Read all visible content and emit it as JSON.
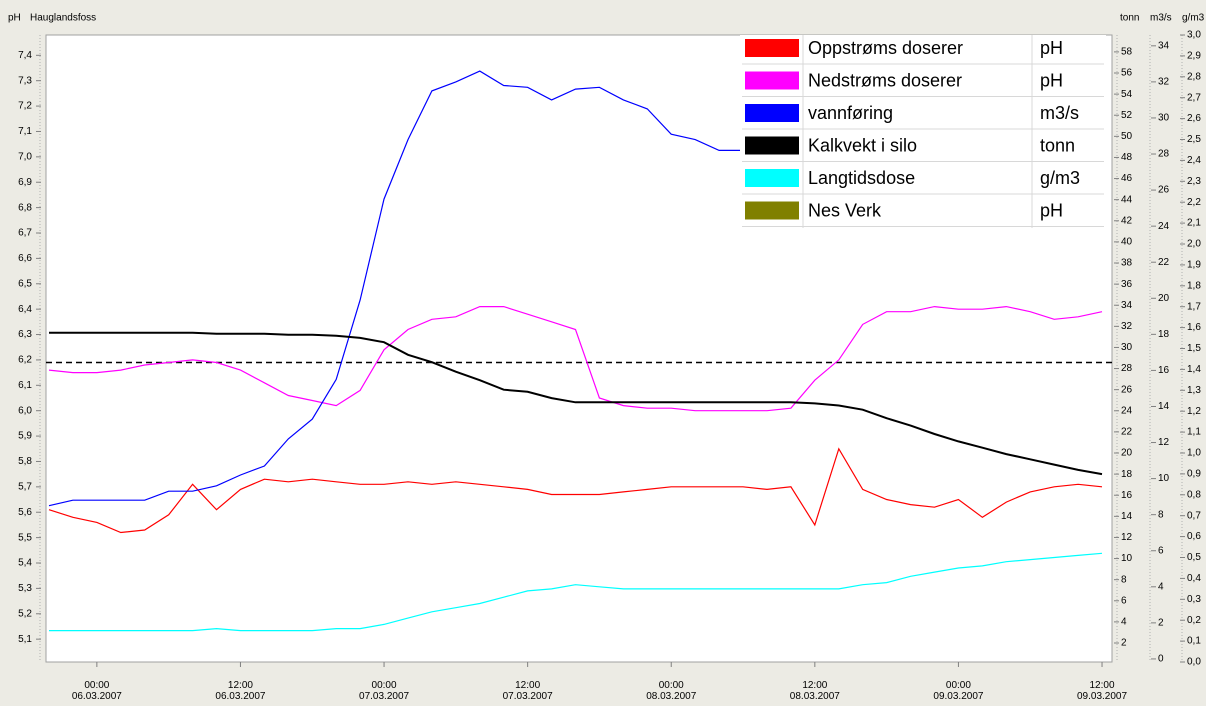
{
  "chart_data": {
    "type": "line",
    "title": "Hauglandsfoss",
    "ylabel": "pH",
    "y2label": "tonn",
    "y3label": "m3/s",
    "y4label": "g/m3",
    "x": [
      "2007-03-05T20:00",
      "2007-03-05T22:00",
      "2007-03-06T00:00",
      "2007-03-06T02:00",
      "2007-03-06T04:00",
      "2007-03-06T06:00",
      "2007-03-06T08:00",
      "2007-03-06T10:00",
      "2007-03-06T12:00",
      "2007-03-06T14:00",
      "2007-03-06T16:00",
      "2007-03-06T18:00",
      "2007-03-06T20:00",
      "2007-03-06T22:00",
      "2007-03-07T00:00",
      "2007-03-07T02:00",
      "2007-03-07T04:00",
      "2007-03-07T06:00",
      "2007-03-07T08:00",
      "2007-03-07T10:00",
      "2007-03-07T12:00",
      "2007-03-07T14:00",
      "2007-03-07T16:00",
      "2007-03-07T18:00",
      "2007-03-07T20:00",
      "2007-03-07T22:00",
      "2007-03-08T00:00",
      "2007-03-08T02:00",
      "2007-03-08T04:00",
      "2007-03-08T06:00",
      "2007-03-08T08:00",
      "2007-03-08T10:00",
      "2007-03-08T12:00",
      "2007-03-08T14:00",
      "2007-03-08T16:00",
      "2007-03-08T18:00",
      "2007-03-08T20:00",
      "2007-03-08T22:00",
      "2007-03-09T00:00",
      "2007-03-09T02:00",
      "2007-03-09T04:00",
      "2007-03-09T06:00",
      "2007-03-09T08:00",
      "2007-03-09T10:00",
      "2007-03-09T12:00"
    ],
    "xlim": [
      "2007-03-05T19:45",
      "2007-03-09T12:50"
    ],
    "xticks": [
      {
        "value": "2007-03-06T00:00",
        "label": "00:00\n06.03.2007"
      },
      {
        "value": "2007-03-06T12:00",
        "label": "12:00\n06.03.2007"
      },
      {
        "value": "2007-03-07T00:00",
        "label": "00:00\n07.03.2007"
      },
      {
        "value": "2007-03-07T12:00",
        "label": "12:00\n07.03.2007"
      },
      {
        "value": "2007-03-08T00:00",
        "label": "00:00\n08.03.2007"
      },
      {
        "value": "2007-03-08T12:00",
        "label": "12:00\n08.03.2007"
      },
      {
        "value": "2007-03-09T00:00",
        "label": "00:00\n09.03.2007"
      },
      {
        "value": "2007-03-09T12:00",
        "label": "12:00\n09.03.2007"
      }
    ],
    "ylim": [
      5.01,
      7.48
    ],
    "yticks": [
      {
        "value": 5.1,
        "label": "5,1"
      },
      {
        "value": 5.2,
        "label": "5,2"
      },
      {
        "value": 5.3,
        "label": "5,3"
      },
      {
        "value": 5.4,
        "label": "5,4"
      },
      {
        "value": 5.5,
        "label": "5,5"
      },
      {
        "value": 5.6,
        "label": "5,6"
      },
      {
        "value": 5.7,
        "label": "5,7"
      },
      {
        "value": 5.8,
        "label": "5,8"
      },
      {
        "value": 5.9,
        "label": "5,9"
      },
      {
        "value": 6.0,
        "label": "6,0"
      },
      {
        "value": 6.1,
        "label": "6,1"
      },
      {
        "value": 6.2,
        "label": "6,2"
      },
      {
        "value": 6.3,
        "label": "6,3"
      },
      {
        "value": 6.4,
        "label": "6,4"
      },
      {
        "value": 6.5,
        "label": "6,5"
      },
      {
        "value": 6.6,
        "label": "6,6"
      },
      {
        "value": 6.7,
        "label": "6,7"
      },
      {
        "value": 6.8,
        "label": "6,8"
      },
      {
        "value": 6.9,
        "label": "6,9"
      },
      {
        "value": 7.0,
        "label": "7,0"
      },
      {
        "value": 7.1,
        "label": "7,1"
      },
      {
        "value": 7.2,
        "label": "7,2"
      },
      {
        "value": 7.3,
        "label": "7,3"
      },
      {
        "value": 7.4,
        "label": "7,4"
      }
    ],
    "y2lim": [
      0.2,
      59.6
    ],
    "y2ticks": [
      2,
      4,
      6,
      8,
      10,
      12,
      14,
      16,
      18,
      20,
      22,
      24,
      26,
      28,
      30,
      32,
      34,
      36,
      38,
      40,
      42,
      44,
      46,
      48,
      50,
      52,
      54,
      56,
      58
    ],
    "y3lim": [
      -0.17,
      34.6
    ],
    "y3ticks": [
      0,
      2,
      4,
      6,
      8,
      10,
      12,
      14,
      16,
      18,
      20,
      22,
      24,
      26,
      28,
      30,
      32,
      34
    ],
    "y4lim": [
      0,
      3
    ],
    "y4ticks": [
      {
        "value": 0,
        "label": "0,0"
      },
      {
        "value": 0.1,
        "label": "0,1"
      },
      {
        "value": 0.2,
        "label": "0,2"
      },
      {
        "value": 0.3,
        "label": "0,3"
      },
      {
        "value": 0.4,
        "label": "0,4"
      },
      {
        "value": 0.5,
        "label": "0,5"
      },
      {
        "value": 0.6,
        "label": "0,6"
      },
      {
        "value": 0.7,
        "label": "0,7"
      },
      {
        "value": 0.8,
        "label": "0,8"
      },
      {
        "value": 0.9,
        "label": "0,9"
      },
      {
        "value": 1.0,
        "label": "1,0"
      },
      {
        "value": 1.1,
        "label": "1,1"
      },
      {
        "value": 1.2,
        "label": "1,2"
      },
      {
        "value": 1.3,
        "label": "1,3"
      },
      {
        "value": 1.4,
        "label": "1,4"
      },
      {
        "value": 1.5,
        "label": "1,5"
      },
      {
        "value": 1.6,
        "label": "1,6"
      },
      {
        "value": 1.7,
        "label": "1,7"
      },
      {
        "value": 1.8,
        "label": "1,8"
      },
      {
        "value": 1.9,
        "label": "1,9"
      },
      {
        "value": 2.0,
        "label": "2,0"
      },
      {
        "value": 2.1,
        "label": "2,1"
      },
      {
        "value": 2.2,
        "label": "2,2"
      },
      {
        "value": 2.3,
        "label": "2,3"
      },
      {
        "value": 2.4,
        "label": "2,4"
      },
      {
        "value": 2.5,
        "label": "2,5"
      },
      {
        "value": 2.6,
        "label": "2,6"
      },
      {
        "value": 2.7,
        "label": "2,7"
      },
      {
        "value": 2.8,
        "label": "2,8"
      },
      {
        "value": 2.9,
        "label": "2,9"
      },
      {
        "value": 3.0,
        "label": "3,0"
      }
    ],
    "reference_lines": [
      {
        "value": 6.19,
        "axis": "y",
        "color": "#000000",
        "style": "dashed"
      }
    ],
    "series": [
      {
        "name": "Oppstrøms doserer",
        "unit": "pH",
        "color": "#ff0000",
        "axis": "y",
        "values": [
          5.61,
          5.58,
          5.56,
          5.52,
          5.53,
          5.59,
          5.71,
          5.61,
          5.69,
          5.73,
          5.72,
          5.73,
          5.72,
          5.71,
          5.71,
          5.72,
          5.71,
          5.72,
          5.71,
          5.7,
          5.69,
          5.67,
          5.67,
          5.67,
          5.68,
          5.69,
          5.7,
          5.7,
          5.7,
          5.7,
          5.69,
          5.7,
          5.55,
          5.85,
          5.69,
          5.65,
          5.63,
          5.62,
          5.65,
          5.58,
          5.64,
          5.68,
          5.7,
          5.71,
          5.7
        ]
      },
      {
        "name": "Nedstrøms doserer",
        "unit": "pH",
        "color": "#ff00ff",
        "axis": "y",
        "values": [
          6.16,
          6.15,
          6.15,
          6.16,
          6.18,
          6.19,
          6.2,
          6.19,
          6.16,
          6.11,
          6.06,
          6.04,
          6.02,
          6.08,
          6.24,
          6.32,
          6.36,
          6.37,
          6.41,
          6.41,
          6.38,
          6.35,
          6.32,
          6.05,
          6.02,
          6.01,
          6.01,
          6.0,
          6.0,
          6.0,
          6.0,
          6.01,
          6.12,
          6.2,
          6.34,
          6.39,
          6.39,
          6.41,
          6.4,
          6.4,
          6.41,
          6.39,
          6.36,
          6.37,
          6.39
        ]
      },
      {
        "name": "vannføring",
        "unit": "m3/s",
        "color": "#0000ff",
        "axis": "y3",
        "values": [
          8.5,
          8.8,
          8.8,
          8.8,
          8.8,
          9.3,
          9.3,
          9.6,
          10.2,
          10.7,
          12.2,
          13.3,
          15.5,
          19.9,
          25.5,
          28.8,
          31.5,
          32.0,
          32.6,
          31.8,
          31.7,
          31.0,
          31.6,
          31.7,
          31.0,
          30.5,
          29.1,
          28.8,
          28.2,
          28.2,
          27.7,
          27.1,
          26.6,
          26.3,
          26.0,
          25.7,
          25.5,
          25.3,
          25.2,
          25.1,
          25.0,
          24.9,
          24.8,
          24.7,
          24.6
        ]
      },
      {
        "name": "Kalkvekt i silo",
        "unit": "tonn",
        "color": "#000000",
        "axis": "y2",
        "values": [
          31.4,
          31.4,
          31.4,
          31.4,
          31.4,
          31.4,
          31.4,
          31.3,
          31.3,
          31.3,
          31.2,
          31.2,
          31.1,
          30.9,
          30.5,
          29.3,
          28.6,
          27.7,
          26.9,
          26.0,
          25.8,
          25.2,
          24.8,
          24.8,
          24.8,
          24.8,
          24.8,
          24.8,
          24.8,
          24.8,
          24.8,
          24.8,
          24.7,
          24.5,
          24.1,
          23.3,
          22.6,
          21.8,
          21.1,
          20.5,
          19.9,
          19.4,
          18.9,
          18.4,
          18.0
        ]
      },
      {
        "name": "Langtidsdose",
        "unit": "g/m3",
        "color": "#00ffff",
        "axis": "y4",
        "values": [
          0.15,
          0.15,
          0.15,
          0.15,
          0.15,
          0.15,
          0.15,
          0.16,
          0.15,
          0.15,
          0.15,
          0.15,
          0.16,
          0.16,
          0.18,
          0.21,
          0.24,
          0.26,
          0.28,
          0.31,
          0.34,
          0.35,
          0.37,
          0.36,
          0.35,
          0.35,
          0.35,
          0.35,
          0.35,
          0.35,
          0.35,
          0.35,
          0.35,
          0.35,
          0.37,
          0.38,
          0.41,
          0.43,
          0.45,
          0.46,
          0.48,
          0.49,
          0.5,
          0.51,
          0.52
        ]
      },
      {
        "name": "Nes Verk",
        "unit": "pH",
        "color": "#808000",
        "axis": "y"
      }
    ]
  }
}
